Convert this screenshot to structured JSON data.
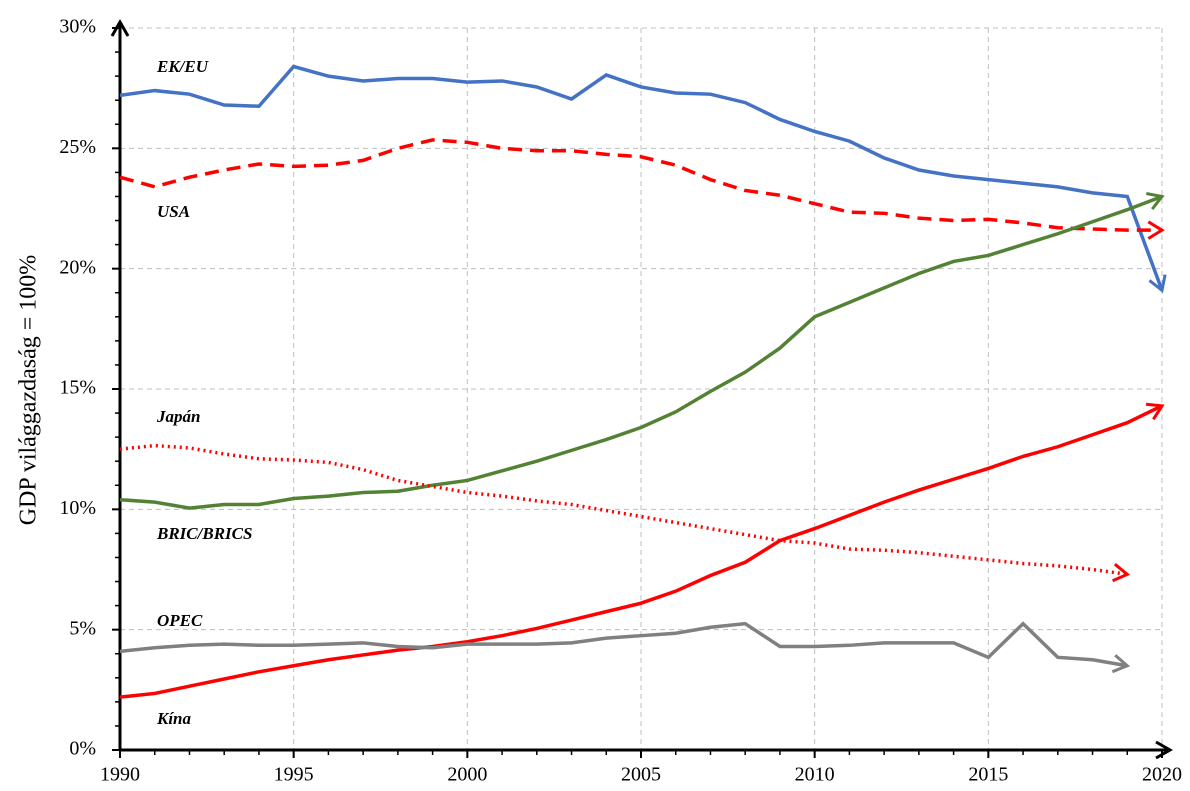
{
  "chart_data": {
    "type": "line",
    "ylabel": "GDP világgazdaság = 100%",
    "x": [
      1990,
      1991,
      1992,
      1993,
      1994,
      1995,
      1996,
      1997,
      1998,
      1999,
      2000,
      2001,
      2002,
      2003,
      2004,
      2005,
      2006,
      2007,
      2008,
      2009,
      2010,
      2011,
      2012,
      2013,
      2014,
      2015,
      2016,
      2017,
      2018,
      2019,
      2020
    ],
    "series": [
      {
        "name": "EK/EU",
        "color": "#4472c4",
        "dash": "solid",
        "values": [
          27.2,
          27.4,
          27.25,
          26.8,
          26.75,
          28.4,
          28.0,
          27.8,
          27.9,
          27.9,
          27.75,
          27.8,
          27.55,
          27.05,
          28.05,
          27.55,
          27.3,
          27.25,
          26.9,
          26.2,
          25.7,
          25.3,
          24.6,
          24.1,
          23.85,
          23.7,
          23.55,
          23.4,
          23.15,
          23.0,
          19.1
        ]
      },
      {
        "name": "USA",
        "color": "#ff0000",
        "dash": "dashed",
        "values": [
          23.8,
          23.4,
          23.8,
          24.1,
          24.35,
          24.25,
          24.3,
          24.5,
          25.0,
          25.35,
          25.25,
          25.0,
          24.9,
          24.9,
          24.75,
          24.65,
          24.3,
          23.7,
          23.25,
          23.05,
          22.7,
          22.35,
          22.3,
          22.1,
          22.0,
          22.05,
          21.9,
          21.7,
          21.65,
          21.6,
          21.6
        ]
      },
      {
        "name": "BRIC/BRICS",
        "color": "#548235",
        "dash": "solid",
        "values": [
          10.4,
          10.3,
          10.05,
          10.2,
          10.2,
          10.45,
          10.55,
          10.7,
          10.75,
          11.0,
          11.2,
          11.6,
          12.0,
          12.45,
          12.9,
          13.4,
          14.05,
          14.9,
          15.7,
          16.7,
          18.0,
          18.6,
          19.2,
          19.8,
          20.3,
          20.55,
          21.0,
          21.45,
          21.95,
          22.45,
          23.0
        ]
      },
      {
        "name": "Japán",
        "color": "#ff0000",
        "dash": "dotted",
        "values": [
          12.5,
          12.65,
          12.55,
          12.3,
          12.1,
          12.05,
          11.95,
          11.65,
          11.2,
          10.95,
          10.7,
          10.55,
          10.35,
          10.2,
          9.95,
          9.7,
          9.45,
          9.2,
          8.95,
          8.7,
          8.6,
          8.35,
          8.3,
          8.2,
          8.05,
          7.9,
          7.75,
          7.65,
          7.5,
          7.3,
          null
        ]
      },
      {
        "name": "Kína",
        "color": "#ff0000",
        "dash": "solid",
        "values": [
          2.2,
          2.35,
          2.65,
          2.95,
          3.25,
          3.5,
          3.75,
          3.95,
          4.15,
          4.3,
          4.5,
          4.75,
          5.05,
          5.4,
          5.75,
          6.1,
          6.6,
          7.25,
          7.8,
          8.7,
          9.2,
          9.75,
          10.3,
          10.8,
          11.25,
          11.7,
          12.2,
          12.6,
          13.1,
          13.6,
          14.3
        ]
      },
      {
        "name": "OPEC",
        "color": "#808080",
        "dash": "solid",
        "values": [
          4.1,
          4.25,
          4.35,
          4.4,
          4.35,
          4.35,
          4.4,
          4.45,
          4.3,
          4.25,
          4.4,
          4.4,
          4.4,
          4.45,
          4.65,
          4.75,
          4.85,
          5.1,
          5.25,
          4.3,
          4.3,
          4.35,
          4.45,
          4.45,
          4.45,
          3.85,
          5.25,
          3.85,
          3.75,
          3.5,
          null
        ]
      }
    ],
    "xlim": [
      1990,
      2020
    ],
    "xticks": [
      1990,
      1995,
      2000,
      2005,
      2010,
      2015,
      2020
    ],
    "ylim": [
      0,
      30
    ],
    "yticks": [
      {
        "value": 0,
        "label": "0%"
      },
      {
        "value": 5,
        "label": "5%"
      },
      {
        "value": 10,
        "label": "10%"
      },
      {
        "value": 15,
        "label": "15%"
      },
      {
        "value": 20,
        "label": "20%"
      },
      {
        "value": 25,
        "label": "25%"
      },
      {
        "value": 30,
        "label": "30%"
      }
    ],
    "grid": true
  }
}
